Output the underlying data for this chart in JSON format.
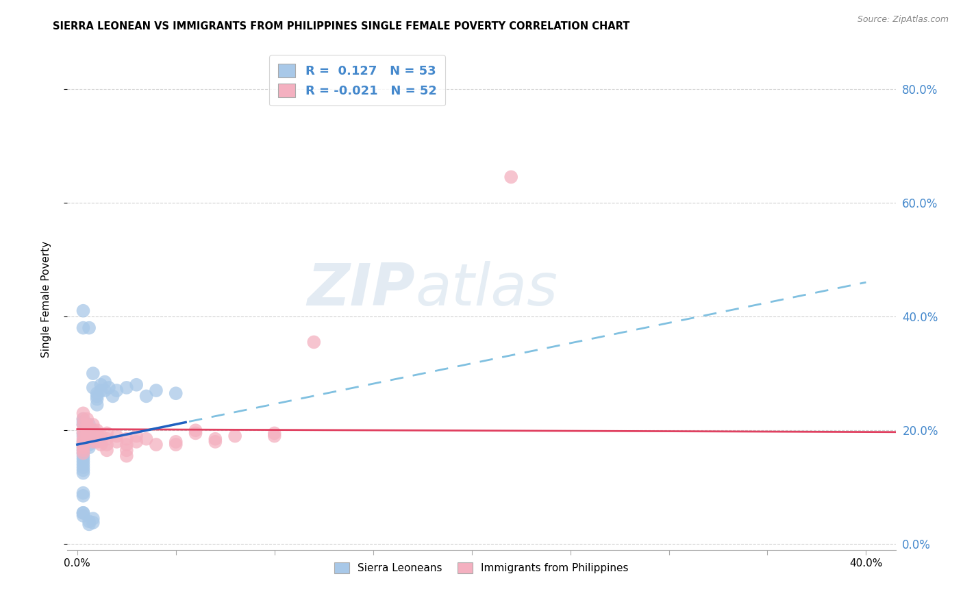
{
  "title": "SIERRA LEONEAN VS IMMIGRANTS FROM PHILIPPINES SINGLE FEMALE POVERTY CORRELATION CHART",
  "source": "Source: ZipAtlas.com",
  "xlabel_vals": [
    0.0,
    0.05,
    0.1,
    0.15,
    0.2,
    0.25,
    0.3,
    0.35,
    0.4
  ],
  "xlabel_labels": [
    "0.0%",
    "",
    "",
    "",
    "",
    "",
    "",
    "",
    "40.0%"
  ],
  "ylabel": "Single Female Poverty",
  "ylabel_ticks": [
    "0.0%",
    "20.0%",
    "40.0%",
    "60.0%",
    "80.0%"
  ],
  "ylabel_vals": [
    0.0,
    0.2,
    0.4,
    0.6,
    0.8
  ],
  "xlim": [
    -0.005,
    0.415
  ],
  "ylim": [
    -0.01,
    0.87
  ],
  "R_blue": 0.127,
  "N_blue": 53,
  "R_pink": -0.021,
  "N_pink": 52,
  "blue_color": "#a8c8e8",
  "pink_color": "#f4b0c0",
  "trendline_blue_dashed_color": "#80c0e0",
  "trendline_blue_solid_color": "#2060c0",
  "trendline_pink_color": "#e04060",
  "legend_label_blue": "Sierra Leoneans",
  "legend_label_pink": "Immigrants from Philippines",
  "blue_scatter": [
    [
      0.003,
      0.195
    ],
    [
      0.003,
      0.215
    ],
    [
      0.003,
      0.21
    ],
    [
      0.003,
      0.22
    ],
    [
      0.003,
      0.175
    ],
    [
      0.003,
      0.18
    ],
    [
      0.003,
      0.19
    ],
    [
      0.003,
      0.165
    ],
    [
      0.003,
      0.17
    ],
    [
      0.003,
      0.16
    ],
    [
      0.003,
      0.155
    ],
    [
      0.003,
      0.15
    ],
    [
      0.003,
      0.145
    ],
    [
      0.003,
      0.14
    ],
    [
      0.003,
      0.135
    ],
    [
      0.003,
      0.13
    ],
    [
      0.003,
      0.125
    ],
    [
      0.003,
      0.09
    ],
    [
      0.003,
      0.085
    ],
    [
      0.003,
      0.055
    ],
    [
      0.003,
      0.05
    ],
    [
      0.006,
      0.2
    ],
    [
      0.006,
      0.21
    ],
    [
      0.006,
      0.195
    ],
    [
      0.006,
      0.185
    ],
    [
      0.006,
      0.17
    ],
    [
      0.006,
      0.175
    ],
    [
      0.008,
      0.3
    ],
    [
      0.008,
      0.275
    ],
    [
      0.01,
      0.265
    ],
    [
      0.01,
      0.255
    ],
    [
      0.01,
      0.26
    ],
    [
      0.01,
      0.245
    ],
    [
      0.012,
      0.28
    ],
    [
      0.012,
      0.27
    ],
    [
      0.014,
      0.285
    ],
    [
      0.014,
      0.27
    ],
    [
      0.016,
      0.275
    ],
    [
      0.018,
      0.26
    ],
    [
      0.02,
      0.27
    ],
    [
      0.025,
      0.275
    ],
    [
      0.03,
      0.28
    ],
    [
      0.035,
      0.26
    ],
    [
      0.04,
      0.27
    ],
    [
      0.05,
      0.265
    ],
    [
      0.003,
      0.38
    ],
    [
      0.003,
      0.41
    ],
    [
      0.003,
      0.055
    ],
    [
      0.006,
      0.04
    ],
    [
      0.006,
      0.035
    ],
    [
      0.008,
      0.045
    ],
    [
      0.008,
      0.038
    ],
    [
      0.006,
      0.38
    ]
  ],
  "pink_scatter": [
    [
      0.003,
      0.23
    ],
    [
      0.003,
      0.22
    ],
    [
      0.003,
      0.21
    ],
    [
      0.003,
      0.2
    ],
    [
      0.003,
      0.195
    ],
    [
      0.003,
      0.185
    ],
    [
      0.003,
      0.18
    ],
    [
      0.003,
      0.175
    ],
    [
      0.003,
      0.17
    ],
    [
      0.003,
      0.165
    ],
    [
      0.003,
      0.16
    ],
    [
      0.005,
      0.22
    ],
    [
      0.005,
      0.21
    ],
    [
      0.005,
      0.2
    ],
    [
      0.005,
      0.195
    ],
    [
      0.005,
      0.185
    ],
    [
      0.008,
      0.21
    ],
    [
      0.008,
      0.2
    ],
    [
      0.008,
      0.185
    ],
    [
      0.008,
      0.18
    ],
    [
      0.01,
      0.2
    ],
    [
      0.01,
      0.195
    ],
    [
      0.01,
      0.185
    ],
    [
      0.01,
      0.18
    ],
    [
      0.012,
      0.19
    ],
    [
      0.012,
      0.18
    ],
    [
      0.012,
      0.175
    ],
    [
      0.015,
      0.195
    ],
    [
      0.015,
      0.185
    ],
    [
      0.015,
      0.175
    ],
    [
      0.015,
      0.165
    ],
    [
      0.02,
      0.19
    ],
    [
      0.02,
      0.18
    ],
    [
      0.025,
      0.185
    ],
    [
      0.025,
      0.175
    ],
    [
      0.025,
      0.165
    ],
    [
      0.025,
      0.155
    ],
    [
      0.03,
      0.19
    ],
    [
      0.03,
      0.18
    ],
    [
      0.035,
      0.185
    ],
    [
      0.04,
      0.175
    ],
    [
      0.05,
      0.18
    ],
    [
      0.05,
      0.175
    ],
    [
      0.06,
      0.2
    ],
    [
      0.06,
      0.195
    ],
    [
      0.07,
      0.185
    ],
    [
      0.07,
      0.18
    ],
    [
      0.08,
      0.19
    ],
    [
      0.1,
      0.195
    ],
    [
      0.1,
      0.19
    ],
    [
      0.12,
      0.355
    ],
    [
      0.22,
      0.645
    ]
  ],
  "watermark_zip": "ZIP",
  "watermark_atlas": "atlas",
  "background_color": "#ffffff",
  "grid_color": "#cccccc",
  "right_axis_color": "#4488cc",
  "title_fontsize": 10.5,
  "source_fontsize": 9
}
